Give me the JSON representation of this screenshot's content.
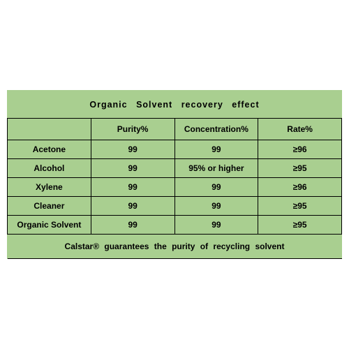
{
  "table": {
    "title": "Organic  Solvent  recovery  effect",
    "columns": [
      "",
      "Purity%",
      "Concentration%",
      "Rate%"
    ],
    "rows": [
      {
        "name": "Acetone",
        "purity": "99",
        "concentration": "99",
        "rate": "≥96"
      },
      {
        "name": "Alcohol",
        "purity": "99",
        "concentration": "95% or higher",
        "rate": "≥95"
      },
      {
        "name": "Xylene",
        "purity": "99",
        "concentration": "99",
        "rate": "≥96"
      },
      {
        "name": "Cleaner",
        "purity": "99",
        "concentration": "99",
        "rate": "≥95"
      },
      {
        "name": "Organic Solvent",
        "purity": "99",
        "concentration": "99",
        "rate": "≥95"
      }
    ],
    "footer": "Calstar® guarantees  the  purity  of  recycling  solvent",
    "background_color": "#a9cf90",
    "border_color": "#000000",
    "font_family": "Arial, sans-serif",
    "title_fontsize": 12.5,
    "cell_fontsize": 12,
    "font_weight": "bold"
  }
}
